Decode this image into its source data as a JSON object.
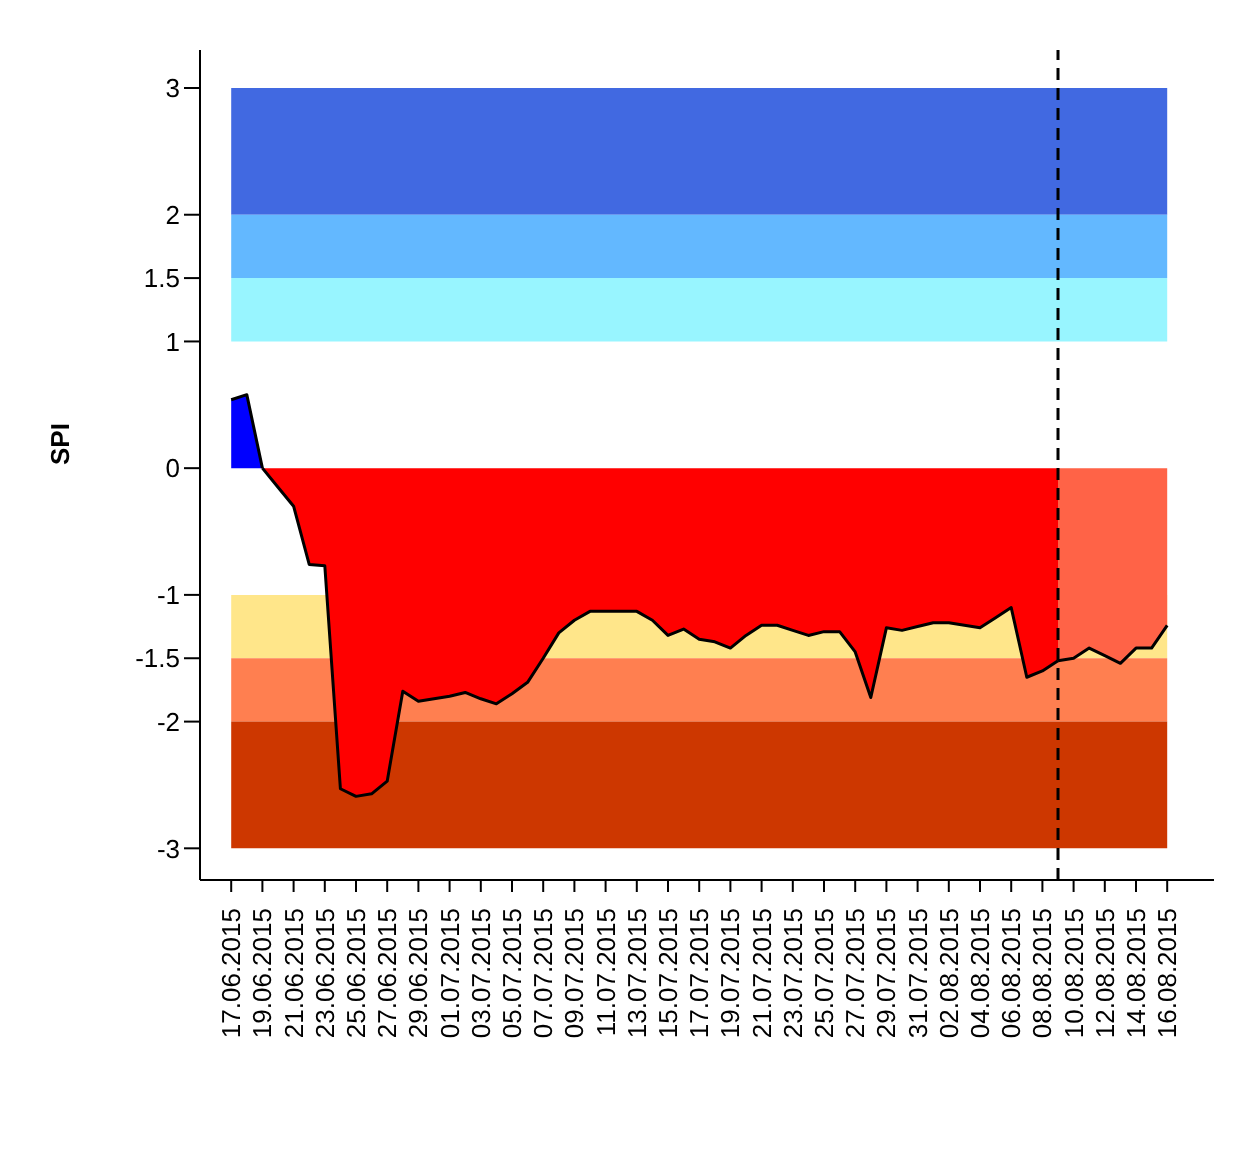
{
  "chart_data": {
    "type": "area",
    "ylabel": "SPI",
    "series": [
      {
        "color": "#0000ff",
        "x": [
          "2015-06-17",
          "2015-06-18",
          "2015-06-19"
        ],
        "values": [
          0.54,
          0.58,
          0
        ]
      },
      {
        "color": "#ff0000",
        "x": [
          "2015-06-19",
          "2015-06-20",
          "2015-06-21",
          "2015-06-22",
          "2015-06-23",
          "2015-06-24",
          "2015-06-25",
          "2015-06-26",
          "2015-06-27",
          "2015-06-28",
          "2015-06-29",
          "2015-06-30",
          "2015-07-01",
          "2015-07-02",
          "2015-07-03",
          "2015-07-04",
          "2015-07-05",
          "2015-07-06",
          "2015-07-07",
          "2015-07-08",
          "2015-07-09",
          "2015-07-10",
          "2015-07-11",
          "2015-07-12",
          "2015-07-13",
          "2015-07-14",
          "2015-07-15",
          "2015-07-16",
          "2015-07-17",
          "2015-07-18",
          "2015-07-19",
          "2015-07-20",
          "2015-07-21",
          "2015-07-22",
          "2015-07-23",
          "2015-07-24",
          "2015-07-25",
          "2015-07-26",
          "2015-07-27",
          "2015-07-28",
          "2015-07-29",
          "2015-07-30",
          "2015-07-31",
          "2015-08-01",
          "2015-08-02",
          "2015-08-03",
          "2015-08-04",
          "2015-08-05",
          "2015-08-06",
          "2015-08-07",
          "2015-08-08",
          "2015-08-09"
        ],
        "values": [
          0,
          -0.15,
          -0.3,
          -0.76,
          -0.77,
          -2.53,
          -2.59,
          -2.57,
          -2.47,
          -1.76,
          -1.84,
          -1.82,
          -1.8,
          -1.77,
          -1.82,
          -1.86,
          -1.78,
          -1.69,
          -1.5,
          -1.3,
          -1.2,
          -1.13,
          -1.13,
          -1.13,
          -1.13,
          -1.2,
          -1.32,
          -1.27,
          -1.35,
          -1.37,
          -1.42,
          -1.32,
          -1.24,
          -1.24,
          -1.28,
          -1.32,
          -1.29,
          -1.29,
          -1.45,
          -1.81,
          -1.26,
          -1.28,
          -1.25,
          -1.22,
          -1.22,
          -1.24,
          -1.26,
          -1.18,
          -1.1,
          -1.65,
          -1.6,
          -1.52
        ]
      },
      {
        "color": "#ff6347",
        "x": [
          "2015-08-09",
          "2015-08-10",
          "2015-08-11",
          "2015-08-12",
          "2015-08-13",
          "2015-08-14",
          "2015-08-15",
          "2015-08-16"
        ],
        "values": [
          -1.52,
          -1.5,
          -1.42,
          -1.48,
          -1.54,
          -1.42,
          -1.42,
          -1.24
        ]
      }
    ],
    "xlim": [
      "2015-06-15",
      "2015-08-19"
    ],
    "xticks": [
      {
        "value": "2015-06-17",
        "label": "17.06.2015"
      },
      {
        "value": "2015-06-19",
        "label": "19.06.2015"
      },
      {
        "value": "2015-06-21",
        "label": "21.06.2015"
      },
      {
        "value": "2015-06-23",
        "label": "23.06.2015"
      },
      {
        "value": "2015-06-25",
        "label": "25.06.2015"
      },
      {
        "value": "2015-06-27",
        "label": "27.06.2015"
      },
      {
        "value": "2015-06-29",
        "label": "29.06.2015"
      },
      {
        "value": "2015-07-01",
        "label": "01.07.2015"
      },
      {
        "value": "2015-07-03",
        "label": "03.07.2015"
      },
      {
        "value": "2015-07-05",
        "label": "05.07.2015"
      },
      {
        "value": "2015-07-07",
        "label": "07.07.2015"
      },
      {
        "value": "2015-07-09",
        "label": "09.07.2015"
      },
      {
        "value": "2015-07-11",
        "label": "11.07.2015"
      },
      {
        "value": "2015-07-13",
        "label": "13.07.2015"
      },
      {
        "value": "2015-07-15",
        "label": "15.07.2015"
      },
      {
        "value": "2015-07-17",
        "label": "17.07.2015"
      },
      {
        "value": "2015-07-19",
        "label": "19.07.2015"
      },
      {
        "value": "2015-07-21",
        "label": "21.07.2015"
      },
      {
        "value": "2015-07-23",
        "label": "23.07.2015"
      },
      {
        "value": "2015-07-25",
        "label": "25.07.2015"
      },
      {
        "value": "2015-07-27",
        "label": "27.07.2015"
      },
      {
        "value": "2015-07-29",
        "label": "29.07.2015"
      },
      {
        "value": "2015-07-31",
        "label": "31.07.2015"
      },
      {
        "value": "2015-08-02",
        "label": "02.08.2015"
      },
      {
        "value": "2015-08-04",
        "label": "04.08.2015"
      },
      {
        "value": "2015-08-06",
        "label": "06.08.2015"
      },
      {
        "value": "2015-08-08",
        "label": "08.08.2015"
      },
      {
        "value": "2015-08-10",
        "label": "10.08.2015"
      },
      {
        "value": "2015-08-12",
        "label": "12.08.2015"
      },
      {
        "value": "2015-08-14",
        "label": "14.08.2015"
      },
      {
        "value": "2015-08-16",
        "label": "16.08.2015"
      }
    ],
    "ylim": [
      -3.25,
      3.3
    ],
    "yticks": [
      -3,
      -2,
      -1.5,
      -1,
      0,
      1,
      1.5,
      2,
      3
    ],
    "bands": [
      {
        "axis": "y",
        "from": 2,
        "to": 3,
        "color": "#4169e1"
      },
      {
        "axis": "y",
        "from": 1.5,
        "to": 2,
        "color": "#63b8ff"
      },
      {
        "axis": "y",
        "from": 1,
        "to": 1.5,
        "color": "#98f5ff"
      },
      {
        "axis": "y",
        "from": -1.5,
        "to": -1,
        "color": "#ffe68a"
      },
      {
        "axis": "y",
        "from": -2,
        "to": -1.5,
        "color": "#ff7f50"
      },
      {
        "axis": "y",
        "from": -3,
        "to": -2,
        "color": "#cd3700"
      }
    ],
    "ref_lines": [
      {
        "axis": "x",
        "value": "2015-08-09",
        "line_style": "dashed",
        "color": "#000000"
      }
    ],
    "legend": false,
    "grid": false
  }
}
